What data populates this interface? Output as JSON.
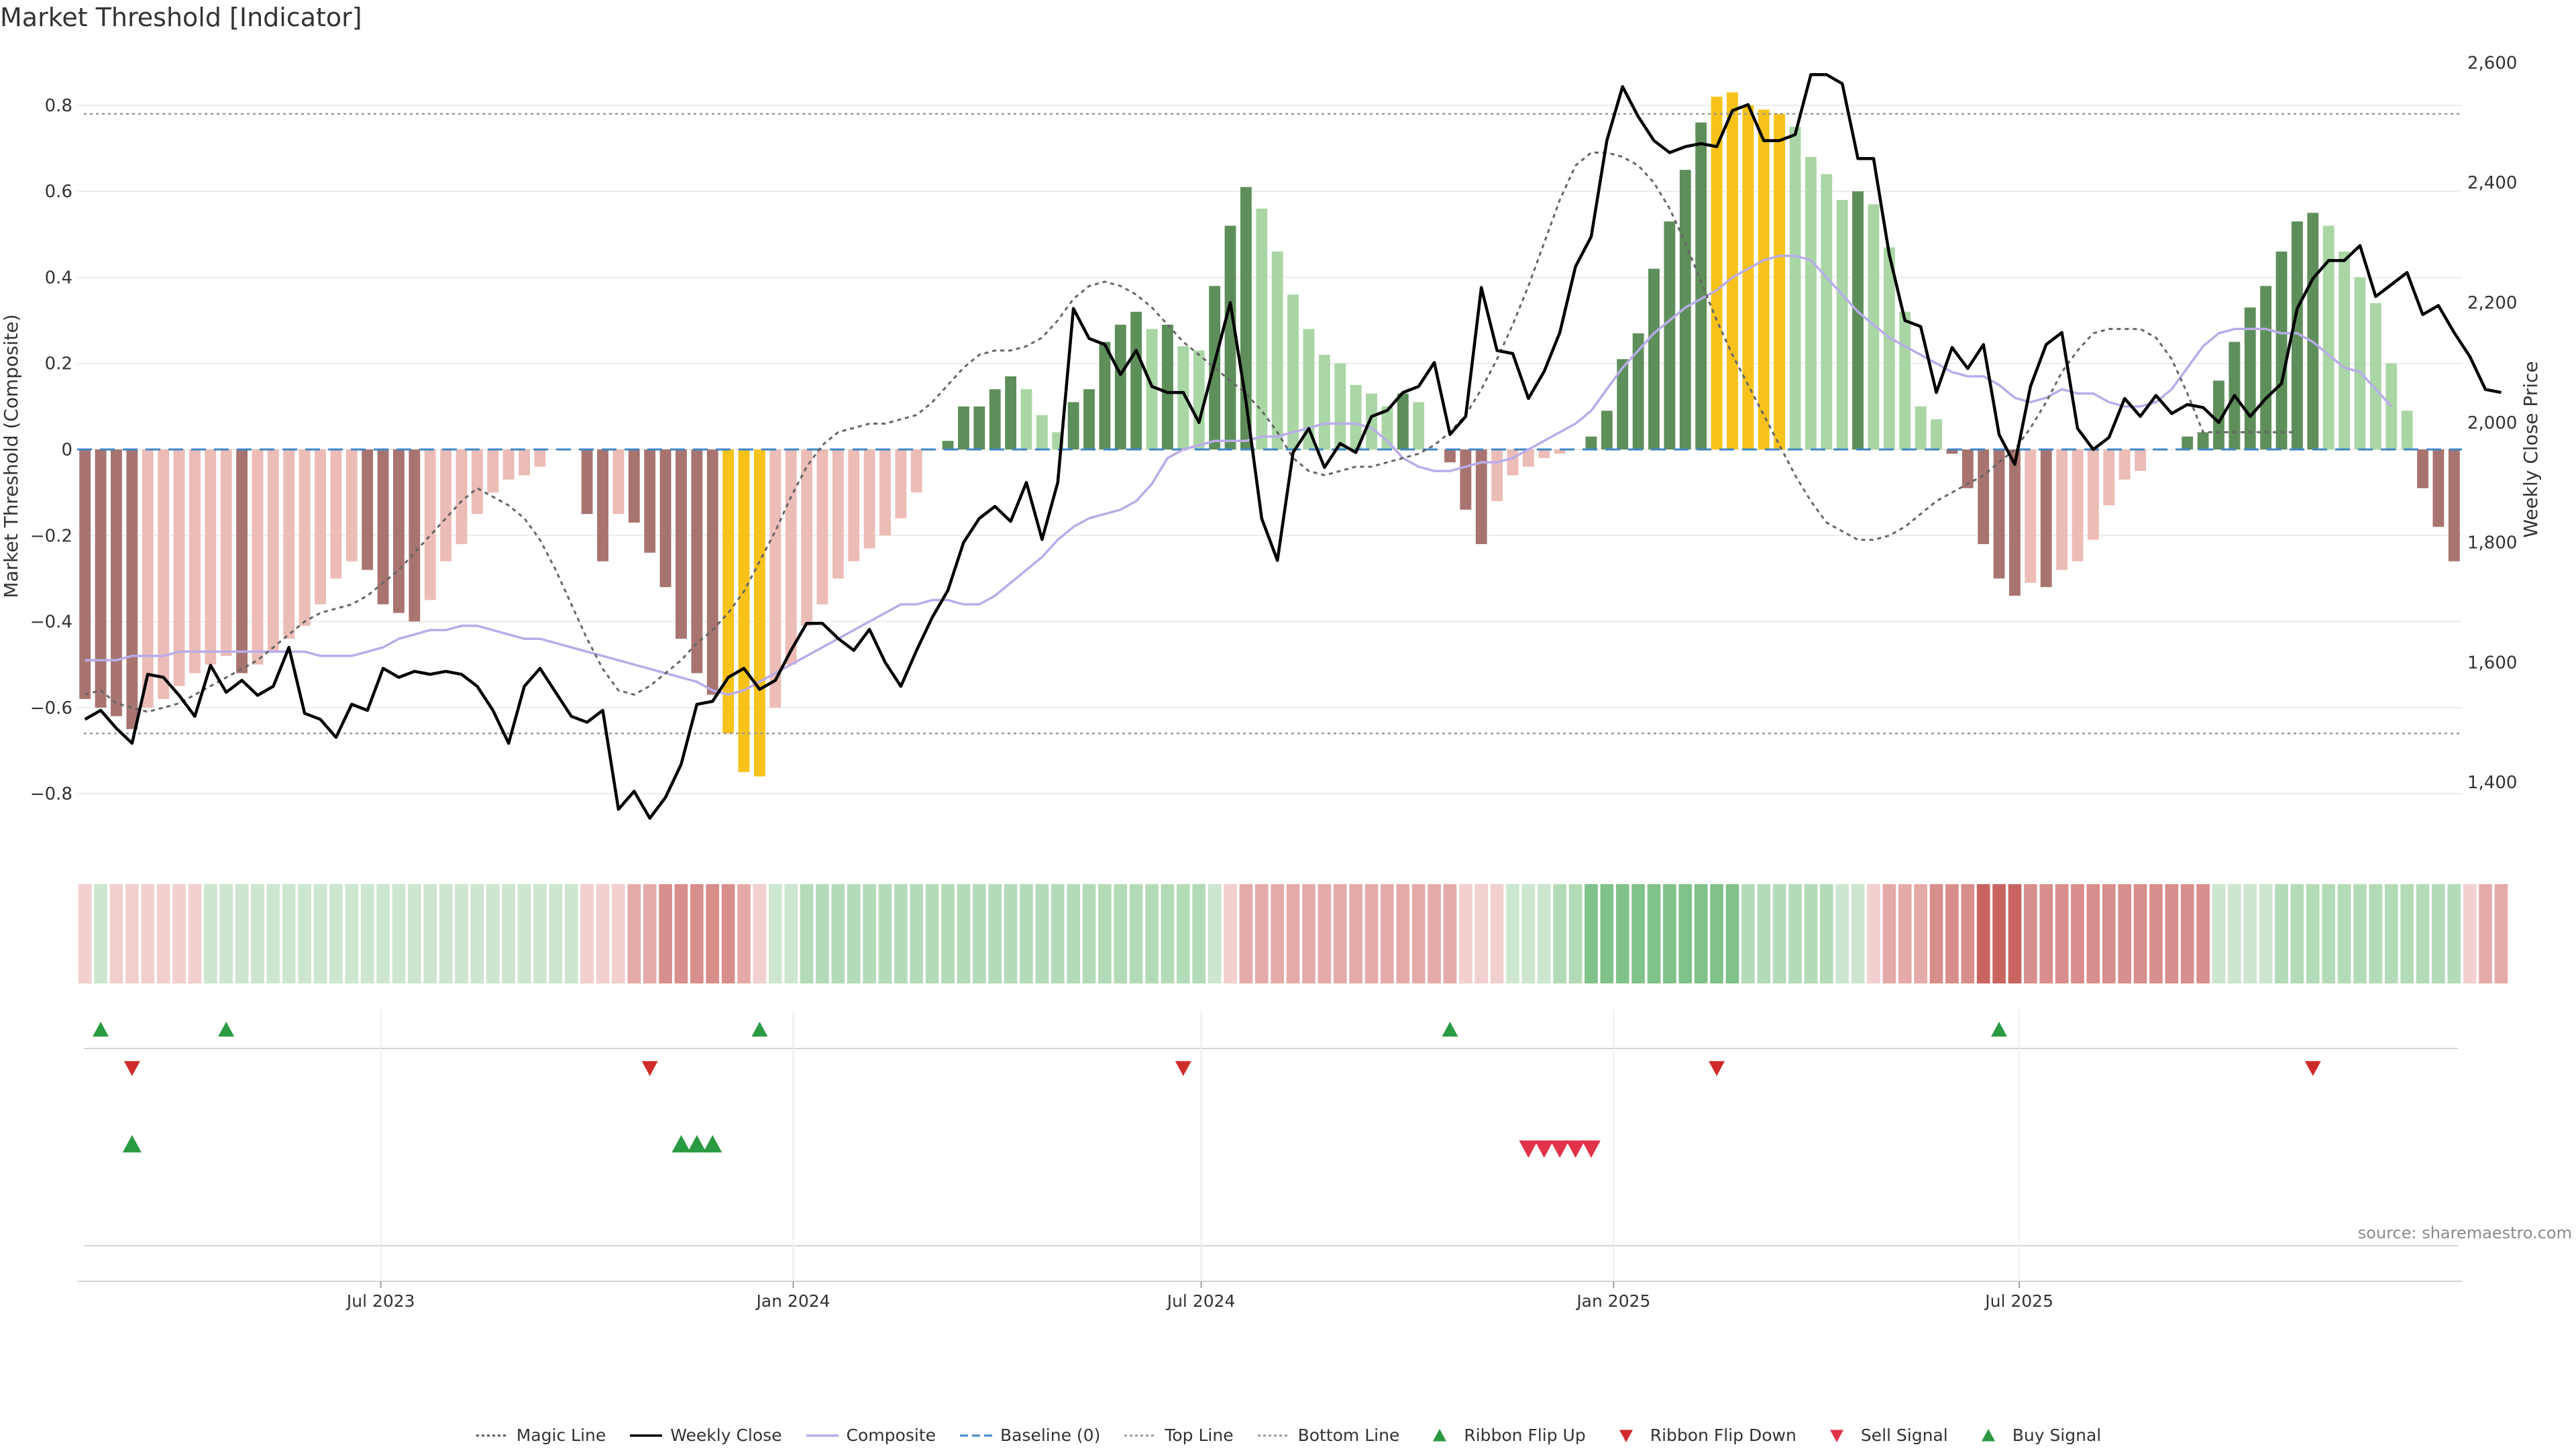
{
  "title": "Market Threshold [Indicator]",
  "source_note": "source: sharemaestro.com",
  "colors": {
    "bar_pos_dark": "#5e8f5a",
    "bar_pos_light": "#a9d6a4",
    "bar_neg_dark": "#a87470",
    "bar_neg_light": "#ecbcb6",
    "bar_extreme": "#f7c21a",
    "weekly_close": "#000000",
    "composite": "#b9acea",
    "magic_line": "#666666",
    "baseline": "#3f86c6",
    "threshold_lines": "#999999",
    "ribbon_up": "#2a9a43",
    "ribbon_down": "#d02b2b",
    "sell_signal": "#e0334a",
    "buy_signal": "#2a9a43"
  },
  "chart_data": {
    "type": "bar",
    "ylabel": "Market Threshold (Composite)",
    "y2label": "Weekly Close Price",
    "ylim": [
      -0.92,
      0.92
    ],
    "y2lim": [
      1295,
      2615
    ],
    "yticks": [
      "0.8",
      "0.6",
      "0.4",
      "0.2",
      "0",
      "−0.2",
      "−0.4",
      "−0.6",
      "−0.8"
    ],
    "y2ticks": [
      "2,600",
      "2,400",
      "2,200",
      "2,000",
      "1,800",
      "1,600",
      "1,400"
    ],
    "x_tick_labels": [
      "Jul 2023",
      "Jan 2024",
      "Jul 2024",
      "Jan 2025",
      "Jul 2025"
    ],
    "start_date": "2023-02-19",
    "top_line": 0.78,
    "bottom_line": -0.66,
    "baseline": 0,
    "composite_bars": [
      -0.58,
      -0.6,
      -0.62,
      -0.65,
      -0.6,
      -0.58,
      -0.55,
      -0.52,
      -0.5,
      -0.48,
      -0.52,
      -0.5,
      -0.47,
      -0.44,
      -0.41,
      -0.36,
      -0.3,
      -0.26,
      -0.28,
      -0.36,
      -0.38,
      -0.4,
      -0.35,
      -0.26,
      -0.22,
      -0.15,
      -0.1,
      -0.07,
      -0.06,
      -0.04,
      0.0,
      0.0,
      -0.15,
      -0.26,
      -0.15,
      -0.17,
      -0.24,
      -0.32,
      -0.44,
      -0.52,
      -0.57,
      -0.66,
      -0.75,
      -0.76,
      -0.6,
      -0.5,
      -0.41,
      -0.36,
      -0.3,
      -0.26,
      -0.23,
      -0.2,
      -0.16,
      -0.1,
      0.0,
      0.02,
      0.1,
      0.1,
      0.14,
      0.17,
      0.14,
      0.08,
      0.04,
      0.11,
      0.14,
      0.25,
      0.29,
      0.32,
      0.28,
      0.29,
      0.24,
      0.23,
      0.38,
      0.52,
      0.61,
      0.56,
      0.46,
      0.36,
      0.28,
      0.22,
      0.2,
      0.15,
      0.13,
      0.1,
      0.13,
      0.11,
      0.0,
      -0.03,
      -0.14,
      -0.22,
      -0.12,
      -0.06,
      -0.04,
      -0.02,
      -0.01,
      0.0,
      0.03,
      0.09,
      0.21,
      0.27,
      0.42,
      0.53,
      0.65,
      0.76,
      0.82,
      0.83,
      0.8,
      0.79,
      0.78,
      0.75,
      0.68,
      0.64,
      0.58,
      0.6,
      0.57,
      0.47,
      0.32,
      0.1,
      0.07,
      -0.01,
      -0.09,
      -0.22,
      -0.3,
      -0.34,
      -0.31,
      -0.32,
      -0.28,
      -0.26,
      -0.21,
      -0.13,
      -0.07,
      -0.05,
      0.0,
      0.0,
      0.03,
      0.04,
      0.16,
      0.25,
      0.33,
      0.38,
      0.46,
      0.53,
      0.55,
      0.52,
      0.46,
      0.4,
      0.34,
      0.2,
      0.09,
      -0.09,
      -0.18,
      -0.26
    ],
    "weekly_close": [
      1505,
      1520,
      1490,
      1465,
      1580,
      1575,
      1545,
      1510,
      1595,
      1550,
      1570,
      1545,
      1560,
      1625,
      1515,
      1505,
      1475,
      1530,
      1520,
      1590,
      1575,
      1585,
      1580,
      1585,
      1580,
      1560,
      1520,
      1465,
      1560,
      1590,
      1550,
      1510,
      1500,
      1520,
      1355,
      1385,
      1340,
      1375,
      1430,
      1530,
      1535,
      1575,
      1590,
      1555,
      1570,
      1620,
      1665,
      1665,
      1640,
      1620,
      1655,
      1600,
      1560,
      1620,
      1675,
      1720,
      1800,
      1840,
      1860,
      1835,
      1900,
      1805,
      1900,
      2190,
      2140,
      2130,
      2080,
      2120,
      2060,
      2050,
      2050,
      2000,
      2100,
      2200,
      2035,
      1840,
      1770,
      1950,
      1990,
      1925,
      1965,
      1950,
      2010,
      2020,
      2050,
      2060,
      2100,
      1980,
      2010,
      2225,
      2120,
      2115,
      2040,
      2085,
      2150,
      2260,
      2310,
      2470,
      2560,
      2510,
      2470,
      2450,
      2460,
      2465,
      2460,
      2520,
      2530,
      2470,
      2470,
      2480,
      2580,
      2580,
      2565,
      2440,
      2440,
      2280,
      2170,
      2160,
      2050,
      2125,
      2090,
      2130,
      1980,
      1930,
      2060,
      2130,
      2150,
      1990,
      1955,
      1975,
      2040,
      2010,
      2045,
      2015,
      2030,
      2025,
      2000,
      2045,
      2010,
      2040,
      2065,
      2190,
      2240,
      2270,
      2270,
      2295,
      2210,
      2230,
      2250,
      2180,
      2195,
      2150,
      2110,
      2055,
      2050
    ],
    "composite_line": [
      -0.49,
      -0.49,
      -0.49,
      -0.48,
      -0.48,
      -0.48,
      -0.47,
      -0.47,
      -0.47,
      -0.47,
      -0.47,
      -0.47,
      -0.47,
      -0.47,
      -0.47,
      -0.48,
      -0.48,
      -0.48,
      -0.47,
      -0.46,
      -0.44,
      -0.43,
      -0.42,
      -0.42,
      -0.41,
      -0.41,
      -0.42,
      -0.43,
      -0.44,
      -0.44,
      -0.45,
      -0.46,
      -0.47,
      -0.48,
      -0.49,
      -0.5,
      -0.51,
      -0.52,
      -0.53,
      -0.54,
      -0.56,
      -0.57,
      -0.56,
      -0.54,
      -0.52,
      -0.5,
      -0.48,
      -0.46,
      -0.44,
      -0.42,
      -0.4,
      -0.38,
      -0.36,
      -0.36,
      -0.35,
      -0.35,
      -0.36,
      -0.36,
      -0.34,
      -0.31,
      -0.28,
      -0.25,
      -0.21,
      -0.18,
      -0.16,
      -0.15,
      -0.14,
      -0.12,
      -0.08,
      -0.02,
      0.0,
      0.01,
      0.02,
      0.02,
      0.02,
      0.03,
      0.03,
      0.04,
      0.05,
      0.06,
      0.06,
      0.06,
      0.05,
      0.02,
      -0.02,
      -0.04,
      -0.05,
      -0.05,
      -0.04,
      -0.03,
      -0.03,
      -0.02,
      0.0,
      0.02,
      0.04,
      0.06,
      0.09,
      0.14,
      0.19,
      0.23,
      0.27,
      0.3,
      0.33,
      0.35,
      0.37,
      0.4,
      0.42,
      0.44,
      0.45,
      0.45,
      0.44,
      0.4,
      0.36,
      0.32,
      0.29,
      0.26,
      0.24,
      0.22,
      0.2,
      0.18,
      0.17,
      0.17,
      0.15,
      0.12,
      0.11,
      0.12,
      0.14,
      0.13,
      0.13,
      0.11,
      0.1,
      0.1,
      0.11,
      0.14,
      0.19,
      0.24,
      0.27,
      0.28,
      0.28,
      0.28,
      0.27,
      0.27,
      0.25,
      0.22,
      0.19,
      0.18,
      0.14,
      0.1
    ],
    "magic_line": [
      -0.57,
      -0.56,
      -0.59,
      -0.6,
      -0.61,
      -0.6,
      -0.59,
      -0.57,
      -0.55,
      -0.53,
      -0.51,
      -0.49,
      -0.46,
      -0.43,
      -0.4,
      -0.38,
      -0.37,
      -0.36,
      -0.34,
      -0.31,
      -0.28,
      -0.24,
      -0.2,
      -0.16,
      -0.12,
      -0.09,
      -0.11,
      -0.13,
      -0.16,
      -0.21,
      -0.28,
      -0.36,
      -0.44,
      -0.51,
      -0.56,
      -0.57,
      -0.55,
      -0.52,
      -0.49,
      -0.45,
      -0.42,
      -0.38,
      -0.33,
      -0.26,
      -0.19,
      -0.11,
      -0.04,
      0.01,
      0.04,
      0.05,
      0.06,
      0.06,
      0.07,
      0.08,
      0.11,
      0.15,
      0.19,
      0.22,
      0.23,
      0.23,
      0.24,
      0.26,
      0.3,
      0.35,
      0.38,
      0.39,
      0.38,
      0.36,
      0.33,
      0.29,
      0.25,
      0.22,
      0.19,
      0.16,
      0.13,
      0.09,
      0.04,
      -0.02,
      -0.05,
      -0.06,
      -0.05,
      -0.04,
      -0.04,
      -0.03,
      -0.02,
      -0.01,
      0.01,
      0.04,
      0.08,
      0.14,
      0.21,
      0.29,
      0.38,
      0.48,
      0.58,
      0.66,
      0.69,
      0.69,
      0.68,
      0.66,
      0.62,
      0.56,
      0.48,
      0.39,
      0.3,
      0.22,
      0.15,
      0.08,
      0.01,
      -0.06,
      -0.12,
      -0.17,
      -0.19,
      -0.21,
      -0.21,
      -0.2,
      -0.18,
      -0.15,
      -0.12,
      -0.1,
      -0.08,
      -0.06,
      -0.03,
      0.0,
      0.05,
      0.11,
      0.18,
      0.23,
      0.27,
      0.28,
      0.28,
      0.28,
      0.26,
      0.21,
      0.13,
      0.04,
      0.04,
      0.04,
      0.04,
      0.04,
      0.04,
      0.04,
      0.04,
      0.04,
      0.04,
      0.04,
      0.04,
      0.04,
      0.04,
      0.04
    ],
    "ribbon_levels": [
      -1,
      1,
      -1,
      -1,
      -1,
      -1,
      -1,
      -1,
      1,
      1,
      1,
      1,
      1,
      1,
      1,
      1,
      1,
      1,
      1,
      1,
      1,
      1,
      1,
      1,
      1,
      1,
      1,
      1,
      1,
      1,
      1,
      1,
      -1,
      -1,
      -1,
      -2,
      -2,
      -3,
      -3,
      -3,
      -3,
      -3,
      -2,
      -1,
      1,
      1,
      2,
      2,
      2,
      2,
      2,
      2,
      2,
      2,
      2,
      2,
      2,
      2,
      2,
      2,
      2,
      2,
      2,
      2,
      2,
      2,
      2,
      2,
      2,
      2,
      2,
      2,
      1,
      -1,
      -2,
      -2,
      -2,
      -2,
      -2,
      -2,
      -2,
      -2,
      -2,
      -2,
      -2,
      -2,
      -2,
      -2,
      -1,
      -1,
      -1,
      1,
      1,
      1,
      2,
      2,
      3,
      3,
      3,
      3,
      3,
      3,
      3,
      3,
      3,
      3,
      2,
      2,
      2,
      2,
      2,
      2,
      1,
      1,
      -1,
      -2,
      -2,
      -2,
      -3,
      -3,
      -3,
      -4,
      -4,
      -4,
      -3,
      -3,
      -3,
      -3,
      -3,
      -3,
      -3,
      -3,
      -3,
      -3,
      -3,
      -3,
      1,
      1,
      1,
      1,
      2,
      2,
      2,
      2,
      2,
      2,
      2,
      2,
      2,
      2,
      2,
      2,
      -1,
      -2,
      -2
    ],
    "ribbon_flip_up_dates": [
      "2023-02-26",
      "2023-04-23",
      "2023-12-17",
      "2024-10-20",
      "2025-06-22"
    ],
    "ribbon_flip_down_dates": [
      "2023-03-12",
      "2023-10-29",
      "2024-06-23",
      "2025-02-16",
      "2025-11-09"
    ],
    "buy_signal_dates": [
      "2023-03-12",
      "2023-11-12",
      "2023-11-19",
      "2023-11-26"
    ],
    "sell_signal_dates": [
      "2024-11-24",
      "2024-12-01",
      "2024-12-08",
      "2024-12-15",
      "2024-12-22"
    ],
    "legend": [
      {
        "label": "Magic Line",
        "kind": "dotted",
        "color": "#555555"
      },
      {
        "label": "Weekly Close",
        "kind": "solid",
        "color": "#000000"
      },
      {
        "label": "Composite",
        "kind": "solid",
        "color": "#b9acea"
      },
      {
        "label": "Baseline (0)",
        "kind": "dashed",
        "color": "#3f86c6"
      },
      {
        "label": "Top Line",
        "kind": "dotted",
        "color": "#999999"
      },
      {
        "label": "Bottom Line",
        "kind": "dotted",
        "color": "#999999"
      },
      {
        "label": "Ribbon Flip Up",
        "kind": "tri-up",
        "color": "#2a9a43"
      },
      {
        "label": "Ribbon Flip Down",
        "kind": "tri-down",
        "color": "#d02b2b"
      },
      {
        "label": "Sell Signal",
        "kind": "tri-down",
        "color": "#e0334a"
      },
      {
        "label": "Buy Signal",
        "kind": "tri-up",
        "color": "#2a9a43"
      }
    ]
  }
}
